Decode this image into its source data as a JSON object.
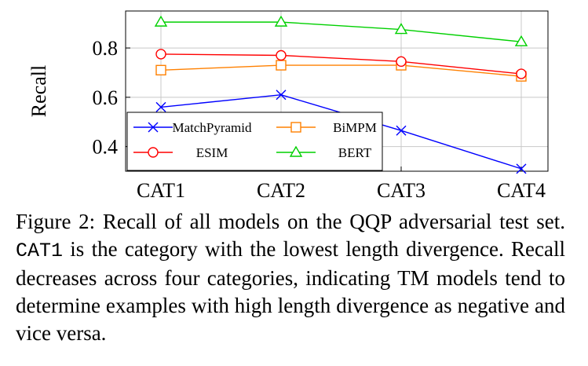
{
  "chart_data": {
    "type": "line",
    "categories": [
      "CAT1",
      "CAT2",
      "CAT3",
      "CAT4"
    ],
    "ylabel": "Recall",
    "xlabel": "",
    "title": "",
    "ylim": [
      0.3,
      0.95
    ],
    "yticks": [
      0.4,
      0.6,
      0.8
    ],
    "grid": true,
    "legend_placement": "bottom-left",
    "series": [
      {
        "name": "MatchPyramid",
        "values": [
          0.56,
          0.61,
          0.465,
          0.31
        ],
        "color": "#0000ff",
        "marker": "x"
      },
      {
        "name": "BiMPM",
        "values": [
          0.71,
          0.73,
          0.73,
          0.685
        ],
        "color": "#ff8000",
        "marker": "square"
      },
      {
        "name": "ESIM",
        "values": [
          0.775,
          0.77,
          0.745,
          0.695
        ],
        "color": "#ff0000",
        "marker": "circle"
      },
      {
        "name": "BERT",
        "values": [
          0.905,
          0.905,
          0.875,
          0.825
        ],
        "color": "#00d000",
        "marker": "triangle"
      }
    ]
  },
  "caption": {
    "prefix": "Figure 2: Recall of all models on the QQP adversarial test set.",
    "code": "CAT1",
    "suffix": "is the category with the lowest length divergence. Recall decreases across four categories, indicating TM models tend to determine examples with high length divergence as negative and vice versa."
  }
}
